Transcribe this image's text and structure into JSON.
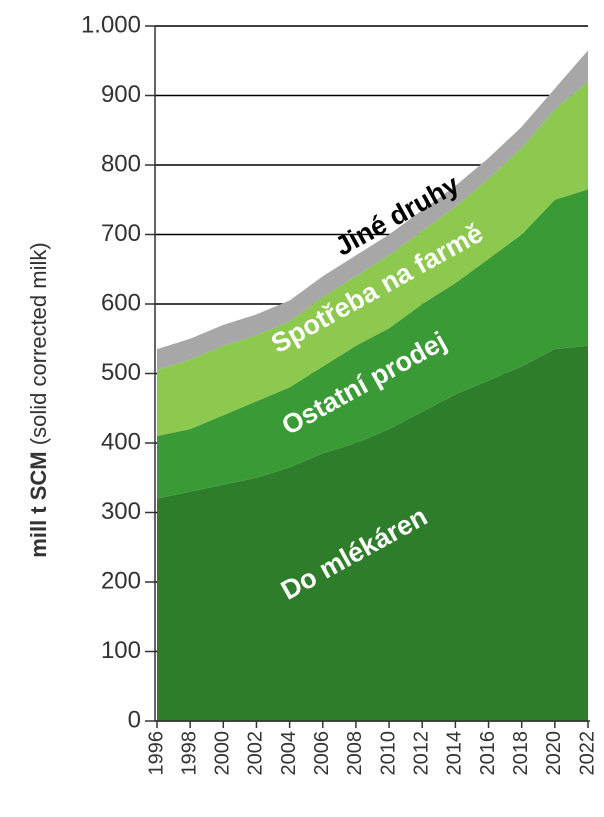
{
  "chart_data": {
    "type": "stacked_area",
    "y_label": [
      "mill t SCM",
      "(solid corrected milk)"
    ],
    "x": [
      1996,
      1998,
      2000,
      2002,
      2004,
      2006,
      2008,
      2010,
      2012,
      2014,
      2016,
      2018,
      2020,
      2022
    ],
    "xlim": [
      1996,
      2022
    ],
    "xticks": [
      1996,
      1998,
      2000,
      2002,
      2004,
      2006,
      2008,
      2010,
      2012,
      2014,
      2016,
      2018,
      2020,
      2022
    ],
    "ylim": [
      0,
      1000
    ],
    "yticks": [
      0,
      100,
      200,
      300,
      400,
      500,
      600,
      700,
      800,
      900,
      {
        "value": 1000,
        "label": "1.000"
      }
    ],
    "grid": true,
    "series": [
      {
        "name": "Do mlékáren",
        "color": "#2e7d2b",
        "values": [
          320,
          330,
          340,
          350,
          365,
          385,
          400,
          420,
          445,
          470,
          490,
          510,
          535,
          540
        ]
      },
      {
        "name": "Ostatní prodej",
        "color": "#3a9b36",
        "values": [
          90,
          90,
          100,
          110,
          115,
          125,
          140,
          145,
          155,
          160,
          175,
          190,
          215,
          225
        ]
      },
      {
        "name": "Spotřeba na farmě",
        "color": "#8dc84f",
        "values": [
          95,
          100,
          100,
          95,
          95,
          100,
          100,
          105,
          105,
          110,
          115,
          125,
          130,
          155
        ]
      },
      {
        "name": "Jiné druhy",
        "color": "#a7a7a7",
        "values": [
          30,
          30,
          30,
          30,
          30,
          30,
          30,
          30,
          30,
          30,
          30,
          30,
          30,
          45
        ]
      }
    ]
  }
}
